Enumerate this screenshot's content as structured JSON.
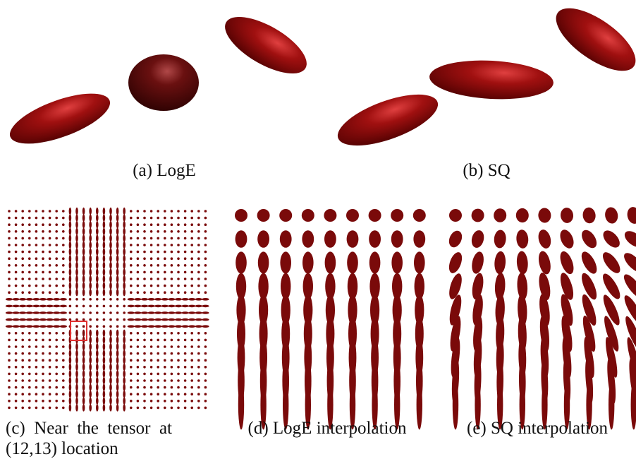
{
  "captions": {
    "a": "(a) LogE",
    "b": "(b) SQ",
    "c": [
      "(c)  Near  the  tensor  at",
      "(12,13) location"
    ],
    "d": "(d) LogE interpolation",
    "e": "(e) SQ interpolation"
  }
}
